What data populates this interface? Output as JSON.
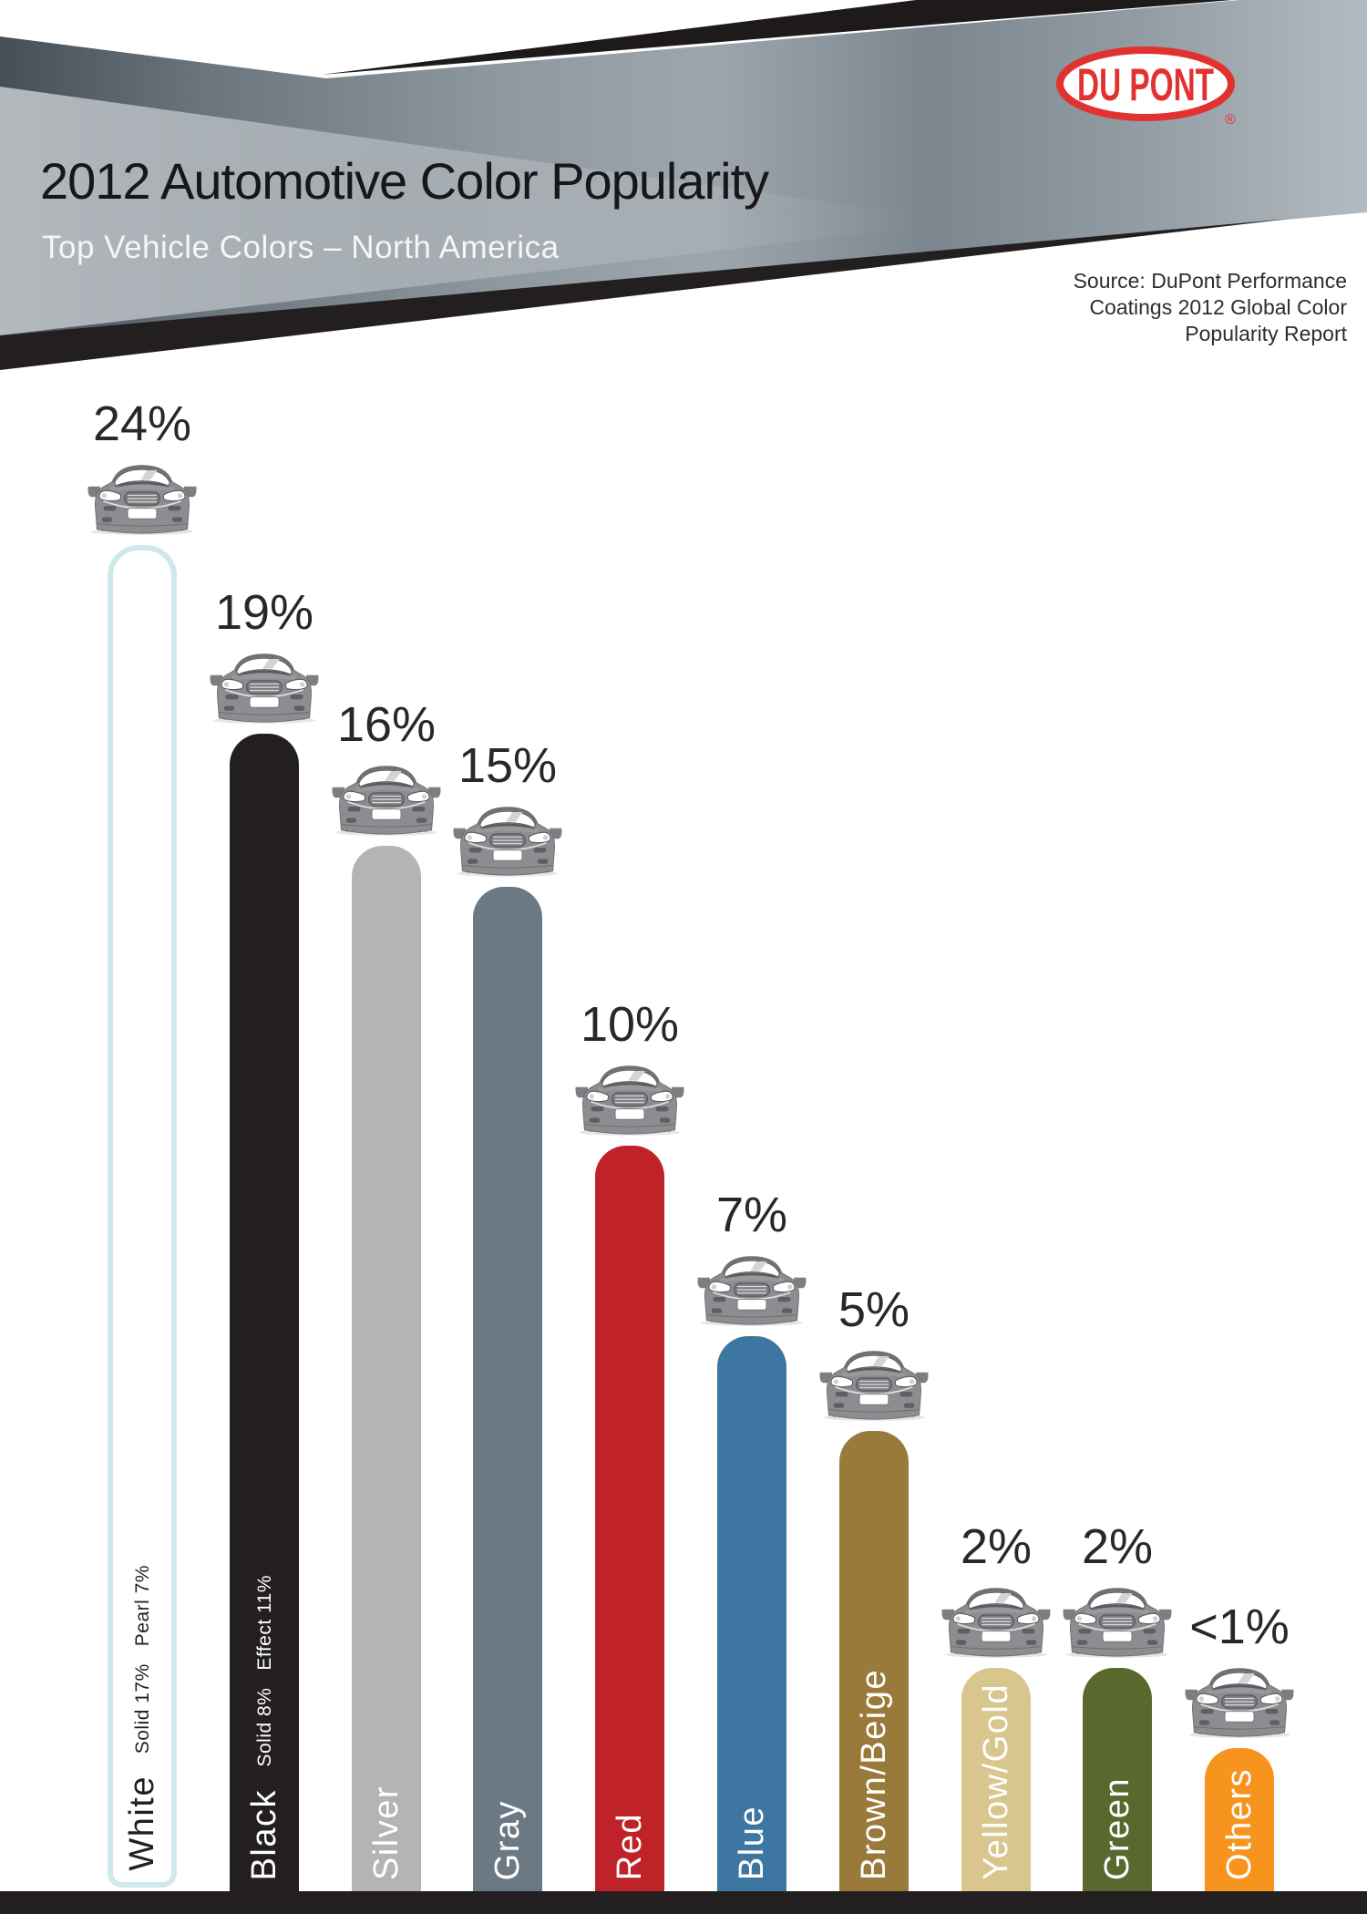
{
  "header": {
    "title": "2012 Automotive Color Popularity",
    "subtitle": "Top Vehicle Colors – North America",
    "source_lines": [
      "Source: DuPont Performance",
      "Coatings 2012 Global Color",
      "Popularity Report"
    ],
    "logo": {
      "text": "DU PONT",
      "registered": "®",
      "color": "#e23230"
    }
  },
  "chart_data": {
    "type": "bar",
    "title": "2012 Automotive Color Popularity",
    "subtitle": "Top Vehicle Colors – North America",
    "unit": "%",
    "source": "Source: DuPont Performance Coatings 2012 Global Color Popularity Report",
    "categories": [
      "White",
      "Black",
      "Silver",
      "Gray",
      "Red",
      "Blue",
      "Brown/Beige",
      "Yellow/Gold",
      "Green",
      "Others"
    ],
    "values": [
      24,
      19,
      16,
      15,
      10,
      7,
      5,
      2,
      2,
      0.5
    ],
    "value_labels": [
      "24%",
      "19%",
      "16%",
      "15%",
      "10%",
      "7%",
      "5%",
      "2%",
      "2%",
      "<1%"
    ],
    "legend_position": "none",
    "grid": false,
    "bars": [
      {
        "label": "White",
        "value_label": "24%",
        "sub_label": "Solid 17%   Pearl 7%",
        "fill": "#ffffff",
        "border": "#cfe9ea",
        "text_color": "#231f20"
      },
      {
        "label": "Black",
        "value_label": "19%",
        "sub_label": "Solid 8%   Effect 11%",
        "fill": "#231f20",
        "text_color": "#ffffff"
      },
      {
        "label": "Silver",
        "value_label": "16%",
        "fill": "#b2b4b6",
        "text_color": "#ffffff"
      },
      {
        "label": "Gray",
        "value_label": "15%",
        "fill": "#6b7985",
        "text_color": "#ffffff"
      },
      {
        "label": "Red",
        "value_label": "10%",
        "fill": "#c0222a",
        "text_color": "#ffffff"
      },
      {
        "label": "Blue",
        "value_label": "7%",
        "fill": "#3d76a0",
        "text_color": "#ffffff"
      },
      {
        "label": "Brown/Beige",
        "value_label": "5%",
        "fill": "#9a7a3a",
        "text_color": "#ffffff"
      },
      {
        "label": "Yellow/Gold",
        "value_label": "2%",
        "fill": "#d8c68e",
        "text_color": "#ffffff"
      },
      {
        "label": "Green",
        "value_label": "2%",
        "fill": "#59692e",
        "text_color": "#ffffff"
      },
      {
        "label": "Others",
        "value_label": "<1%",
        "fill": "#f7941e",
        "text_color": "#ffffff"
      }
    ]
  }
}
